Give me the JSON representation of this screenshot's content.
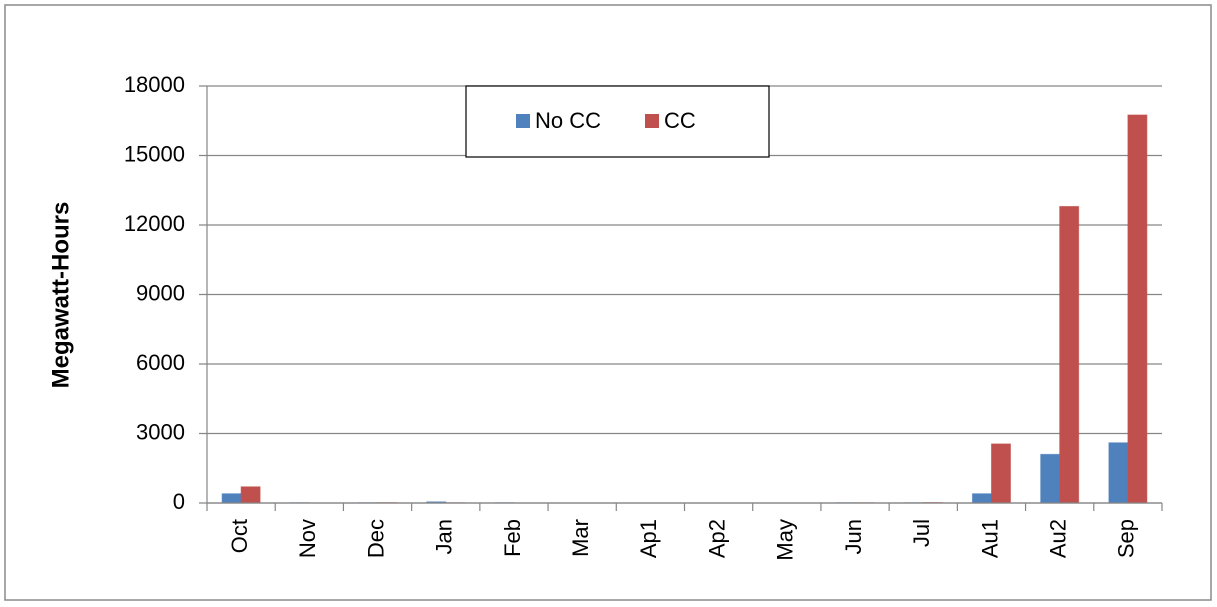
{
  "chart_data": {
    "type": "bar",
    "y_label": "Megawatt-Hours",
    "categories": [
      "Oct",
      "Nov",
      "Dec",
      "Jan",
      "Feb",
      "Mar",
      "Ap1",
      "Ap2",
      "May",
      "Jun",
      "Jul",
      "Au1",
      "Au2",
      "Sep"
    ],
    "series": [
      {
        "name": "No CC",
        "color": "#4f81bd",
        "values": [
          400,
          10,
          10,
          50,
          10,
          0,
          0,
          0,
          0,
          10,
          10,
          400,
          2100,
          2600
        ]
      },
      {
        "name": "CC",
        "color": "#c0504d",
        "values": [
          700,
          0,
          15,
          10,
          0,
          0,
          0,
          0,
          0,
          10,
          20,
          2550,
          12800,
          16750
        ]
      }
    ],
    "ylim": [
      0,
      18000
    ],
    "yticks": [
      0,
      3000,
      6000,
      9000,
      12000,
      15000,
      18000
    ],
    "grid": true
  }
}
